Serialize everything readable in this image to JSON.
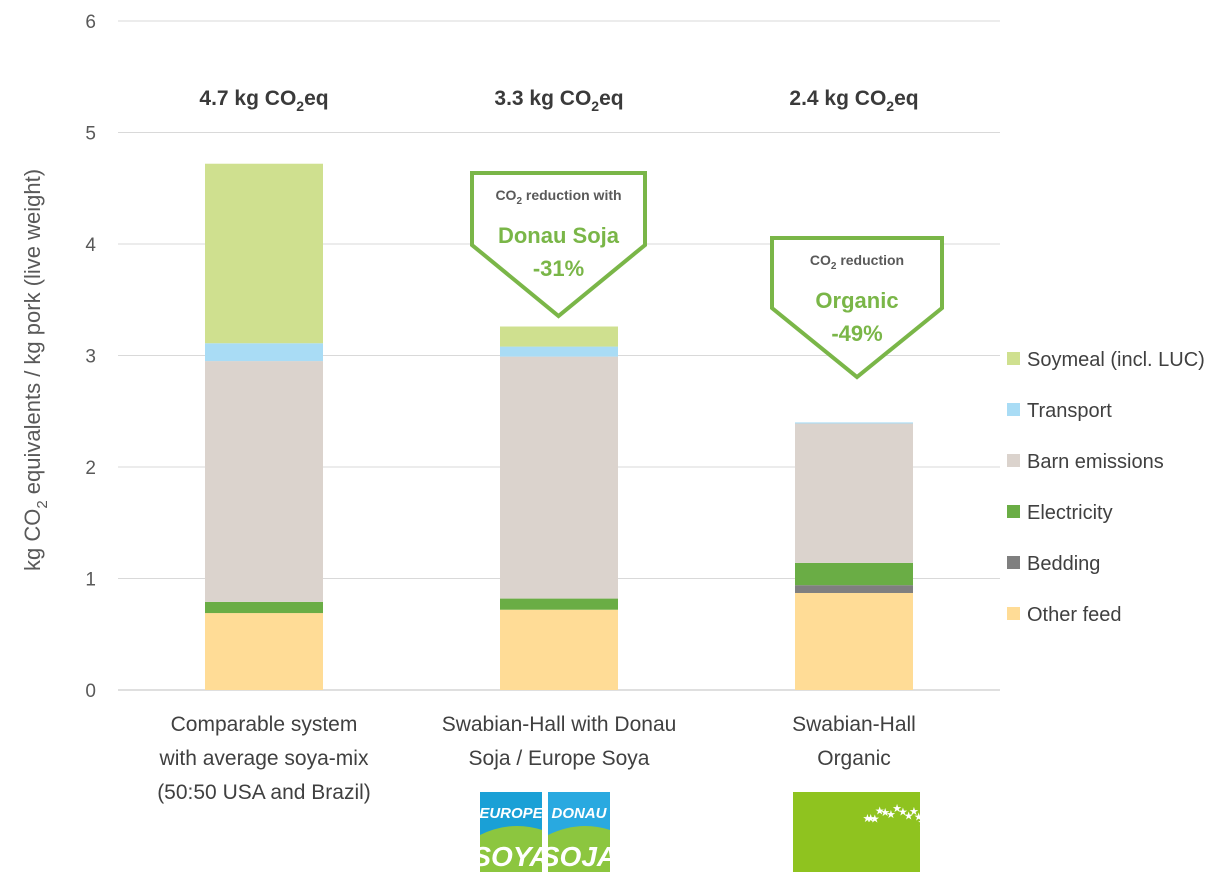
{
  "chart_data": {
    "type": "bar",
    "stacked": true,
    "categories": [
      [
        "Comparable system",
        "with average soya-mix",
        "(50:50 USA and Brazil)"
      ],
      [
        "Swabian-Hall with Donau",
        "Soja / Europe Soya"
      ],
      [
        "Swabian-Hall",
        "Organic"
      ]
    ],
    "series": [
      {
        "name": "Other feed",
        "color": "#ffdc96",
        "values": [
          0.69,
          0.72,
          0.87
        ]
      },
      {
        "name": "Bedding",
        "color": "#7f7f7f",
        "values": [
          0.0,
          0.0,
          0.07
        ]
      },
      {
        "name": "Electricity",
        "color": "#6aad45",
        "values": [
          0.1,
          0.1,
          0.2
        ]
      },
      {
        "name": "Barn emissions",
        "color": "#dbd3cd",
        "values": [
          2.16,
          2.17,
          1.25
        ]
      },
      {
        "name": "Transport",
        "color": "#a9dcf5",
        "values": [
          0.16,
          0.09,
          0.01
        ]
      },
      {
        "name": "Soymeal (incl. LUC)",
        "color": "#cfe08f",
        "values": [
          1.61,
          0.18,
          0.0
        ]
      }
    ],
    "totals": [
      {
        "value": "4.7 kg CO",
        "sub": "2",
        "unit": "eq"
      },
      {
        "value": "3.3 kg CO",
        "sub": "2",
        "unit": "eq"
      },
      {
        "value": "2.4 kg CO",
        "sub": "2",
        "unit": "eq"
      }
    ],
    "ylabel": {
      "pre": "kg CO",
      "sub": "2",
      "post": " equivalents / kg pork (live weight)"
    },
    "ylim": [
      0,
      6
    ],
    "yticks": [
      "0",
      "1",
      "2",
      "3",
      "4",
      "5",
      "6"
    ],
    "grid": true,
    "legend_position": "right",
    "callouts": [
      {
        "small_pre": "CO",
        "small_sub": "2",
        "small_post": " reduction with",
        "name": "Donau Soja",
        "pct": "-31%"
      },
      {
        "small_pre": "CO",
        "small_sub": "2",
        "small_post": " reduction",
        "name": "Organic",
        "pct": "-49%"
      }
    ],
    "logos": [
      {
        "line1": "EUROPE",
        "line2": "SOYA"
      },
      {
        "line1": "DONAU",
        "line2": "SOJA"
      }
    ],
    "accent_color": "#7ab648"
  }
}
